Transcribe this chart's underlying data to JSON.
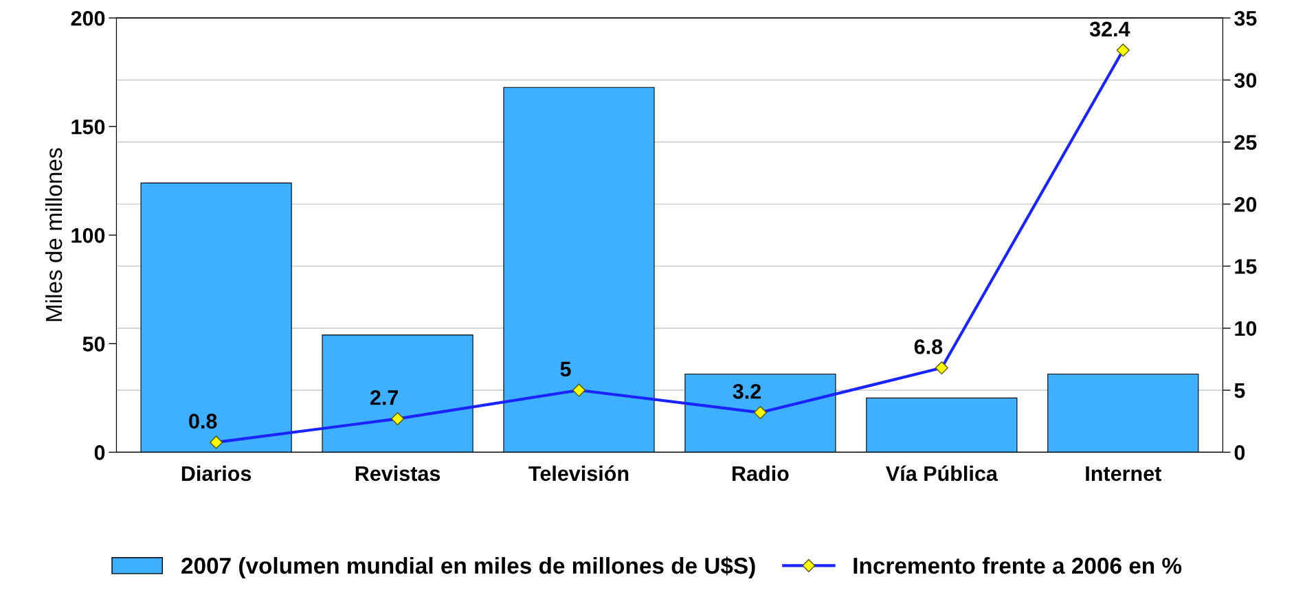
{
  "chart_data": {
    "type": "bar",
    "ylabel": "Miles de millones",
    "categories": [
      "Diarios",
      "Revistas",
      "Televisión",
      "Radio",
      "Vía Pública",
      "Internet"
    ],
    "series": [
      {
        "name": "2007 (volumen mundial en miles de millones de U$S)",
        "color": "#3fb0ff",
        "values": [
          124,
          54,
          168,
          36,
          25,
          36
        ]
      },
      {
        "name": "Incremento frente a 2006 en %",
        "type": "line",
        "axis": "y2",
        "color": "#1a24ff",
        "marker": "diamond",
        "values": [
          0.8,
          2.7,
          5,
          3.2,
          6.8,
          32.4
        ],
        "value_labels": [
          "0.8",
          "2.7",
          "5",
          "3.2",
          "6.8",
          "32.4"
        ]
      }
    ],
    "ylim": [
      0,
      200
    ],
    "yticks": [
      0,
      50,
      100,
      150,
      200
    ],
    "y2lim": [
      0,
      35
    ],
    "y2ticks": [
      0,
      5,
      10,
      15,
      20,
      25,
      30,
      35
    ],
    "grid": "y2",
    "legend": "bottom"
  }
}
